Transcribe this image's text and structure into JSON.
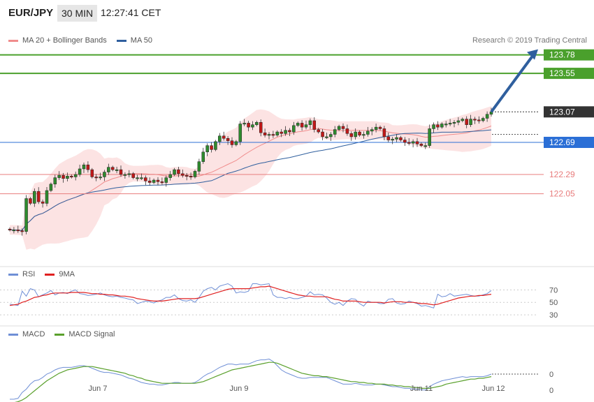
{
  "header": {
    "pair": "EUR/JPY",
    "timeframe": "30 MIN",
    "time": "12:27:41 CET"
  },
  "legend_main": [
    {
      "label": "MA 20 + Bollinger Bands",
      "color": "#f08c8c"
    },
    {
      "label": "MA 50",
      "color": "#2f5f9e"
    }
  ],
  "credit": "Research © 2019 Trading Central",
  "levels": [
    {
      "value": "123.78",
      "color": "#4aa02c",
      "kind": "resistance"
    },
    {
      "value": "123.55",
      "color": "#4aa02c",
      "kind": "resistance"
    },
    {
      "value": "123.07",
      "color": "#333333",
      "kind": "last"
    },
    {
      "value": "122.69",
      "color": "#2b6fd6",
      "kind": "pivot"
    },
    {
      "value": "122.29",
      "color": "#e87c7c",
      "kind": "support"
    },
    {
      "value": "122.05",
      "color": "#e87c7c",
      "kind": "support"
    }
  ],
  "legend_rsi": [
    {
      "label": "RSI",
      "color": "#6f8fd6"
    },
    {
      "label": "9MA",
      "color": "#e02020"
    }
  ],
  "rsi_ticks": [
    "70",
    "50",
    "30"
  ],
  "legend_macd": [
    {
      "label": "MACD",
      "color": "#6f8fd6"
    },
    {
      "label": "MACD Signal",
      "color": "#5aa02c"
    }
  ],
  "macd_ticks": [
    "0",
    "0"
  ],
  "x_labels": [
    "Jun 7",
    "Jun 9",
    "Jun 11",
    "Jun 12"
  ],
  "chart_data": [
    {
      "type": "candlestick",
      "title": "EUR/JPY",
      "yrange": [
        121.3,
        124.0
      ],
      "last_price": 123.07,
      "series": [
        {
          "name": "close",
          "values": [
            121.6,
            121.6,
            121.59,
            121.58,
            121.99,
            121.93,
            122.08,
            121.95,
            121.93,
            122.09,
            122.17,
            122.25,
            122.28,
            122.24,
            122.27,
            122.26,
            122.29,
            122.36,
            122.41,
            122.35,
            122.26,
            122.25,
            122.26,
            122.32,
            122.38,
            122.35,
            122.35,
            122.29,
            122.29,
            122.3,
            122.25,
            122.25,
            122.25,
            122.21,
            122.19,
            122.22,
            122.2,
            122.19,
            122.25,
            122.29,
            122.35,
            122.3,
            122.28,
            122.27,
            122.26,
            122.33,
            122.45,
            122.57,
            122.65,
            122.6,
            122.7,
            122.77,
            122.74,
            122.71,
            122.66,
            122.7,
            122.92,
            122.93,
            122.88,
            122.91,
            122.94,
            122.81,
            122.78,
            122.79,
            122.78,
            122.82,
            122.8,
            122.84,
            122.82,
            122.9,
            122.93,
            122.88,
            122.91,
            122.96,
            122.85,
            122.82,
            122.76,
            122.76,
            122.79,
            122.85,
            122.89,
            122.86,
            122.8,
            122.76,
            122.82,
            122.78,
            122.79,
            122.83,
            122.85,
            122.88,
            122.86,
            122.76,
            122.72,
            122.73,
            122.75,
            122.72,
            122.69,
            122.68,
            122.7,
            122.67,
            122.65,
            122.65,
            122.86,
            122.91,
            122.88,
            122.92,
            122.92,
            122.93,
            122.94,
            122.96,
            122.98,
            122.91,
            122.98,
            122.97,
            122.96,
            122.99,
            123.04,
            123.07
          ]
        }
      ],
      "overlays": [
        "MA 20",
        "Bollinger Bands",
        "MA 50"
      ]
    },
    {
      "type": "line",
      "title": "RSI",
      "series": [
        {
          "name": "RSI",
          "values": [
            47,
            46,
            45,
            68,
            60,
            72,
            70,
            59,
            62,
            65,
            69,
            62,
            65,
            66,
            64,
            68,
            70,
            64,
            63,
            61,
            62,
            63,
            65,
            62,
            60,
            59,
            60,
            58,
            57,
            55,
            54,
            48,
            50,
            52,
            51,
            49,
            52,
            54,
            58,
            58,
            62,
            56,
            53,
            52,
            54,
            50,
            58,
            68,
            72,
            74,
            70,
            76,
            78,
            80,
            76,
            65,
            67,
            66,
            68,
            80,
            80,
            78,
            79,
            80,
            62,
            58,
            58,
            56,
            58,
            56,
            56,
            58,
            60,
            67,
            62,
            63,
            62,
            57,
            50,
            47,
            50,
            45,
            52,
            56,
            55,
            48,
            44,
            52,
            50,
            50,
            48,
            48,
            55,
            56,
            49,
            47,
            48,
            52,
            50,
            48,
            44,
            45,
            43,
            41,
            63,
            59,
            60,
            64,
            60,
            61,
            62,
            63,
            61,
            60,
            60,
            62,
            64,
            69
          ]
        },
        {
          "name": "9MA",
          "values": [
            45,
            46,
            47,
            50,
            52,
            55,
            58,
            59,
            61,
            62,
            64,
            65,
            65,
            65,
            65,
            66,
            66,
            66,
            66,
            65,
            64,
            64,
            63,
            63,
            62,
            62,
            61,
            60,
            60,
            59,
            58,
            56,
            55,
            54,
            53,
            52,
            52,
            52,
            53,
            54,
            55,
            56,
            56,
            56,
            56,
            56,
            57,
            59,
            61,
            63,
            65,
            67,
            69,
            71,
            72,
            72,
            72,
            72,
            72,
            73,
            74,
            75,
            75,
            76,
            74,
            72,
            70,
            68,
            66,
            64,
            62,
            61,
            60,
            60,
            59,
            59,
            59,
            59,
            57,
            55,
            54,
            52,
            52,
            52,
            52,
            51,
            50,
            50,
            50,
            50,
            50,
            49,
            50,
            51,
            51,
            51,
            50,
            50,
            50,
            49,
            48,
            48,
            47,
            46,
            47,
            49,
            51,
            53,
            55,
            57,
            58,
            59,
            60,
            60,
            61,
            61,
            62,
            63
          ]
        }
      ],
      "ticks": [
        70,
        50,
        30
      ]
    },
    {
      "type": "line",
      "title": "MACD",
      "series": [
        {
          "name": "MACD",
          "values": [
            -0.3,
            -0.3,
            -0.29,
            -0.22,
            -0.18,
            -0.12,
            -0.08,
            -0.07,
            -0.04,
            0.0,
            0.02,
            0.05,
            0.07,
            0.08,
            0.08,
            0.08,
            0.09,
            0.1,
            0.1,
            0.09,
            0.07,
            0.05,
            0.03,
            0.02,
            0.02,
            0.01,
            0.0,
            -0.01,
            -0.03,
            -0.05,
            -0.06,
            -0.08,
            -0.1,
            -0.11,
            -0.12,
            -0.12,
            -0.13,
            -0.13,
            -0.12,
            -0.11,
            -0.1,
            -0.1,
            -0.11,
            -0.11,
            -0.11,
            -0.1,
            -0.07,
            -0.03,
            0.0,
            0.02,
            0.05,
            0.08,
            0.1,
            0.12,
            0.12,
            0.11,
            0.12,
            0.12,
            0.12,
            0.14,
            0.16,
            0.17,
            0.17,
            0.18,
            0.15,
            0.1,
            0.05,
            0.02,
            0.0,
            -0.02,
            -0.04,
            -0.05,
            -0.05,
            -0.04,
            -0.04,
            -0.04,
            -0.04,
            -0.04,
            -0.06,
            -0.08,
            -0.1,
            -0.12,
            -0.12,
            -0.12,
            -0.11,
            -0.12,
            -0.13,
            -0.13,
            -0.13,
            -0.12,
            -0.12,
            -0.13,
            -0.14,
            -0.15,
            -0.15,
            -0.16,
            -0.17,
            -0.17,
            -0.18,
            -0.18,
            -0.19,
            -0.19,
            -0.15,
            -0.12,
            -0.1,
            -0.08,
            -0.07,
            -0.06,
            -0.05,
            -0.04,
            -0.03,
            -0.04,
            -0.03,
            -0.03,
            -0.03,
            -0.03,
            -0.02,
            0.0
          ]
        },
        {
          "name": "MACD Signal",
          "values": [
            -0.34,
            -0.34,
            -0.33,
            -0.31,
            -0.28,
            -0.24,
            -0.2,
            -0.16,
            -0.12,
            -0.08,
            -0.05,
            -0.02,
            0.01,
            0.03,
            0.05,
            0.06,
            0.07,
            0.08,
            0.09,
            0.09,
            0.09,
            0.08,
            0.07,
            0.06,
            0.05,
            0.04,
            0.03,
            0.02,
            0.01,
            -0.01,
            -0.02,
            -0.04,
            -0.05,
            -0.07,
            -0.08,
            -0.09,
            -0.1,
            -0.11,
            -0.11,
            -0.11,
            -0.11,
            -0.11,
            -0.11,
            -0.11,
            -0.11,
            -0.11,
            -0.1,
            -0.09,
            -0.07,
            -0.05,
            -0.03,
            -0.01,
            0.01,
            0.03,
            0.05,
            0.06,
            0.07,
            0.08,
            0.09,
            0.1,
            0.11,
            0.12,
            0.13,
            0.14,
            0.14,
            0.13,
            0.11,
            0.09,
            0.07,
            0.05,
            0.03,
            0.01,
            0.0,
            -0.01,
            -0.02,
            -0.02,
            -0.03,
            -0.03,
            -0.04,
            -0.05,
            -0.06,
            -0.07,
            -0.08,
            -0.09,
            -0.09,
            -0.1,
            -0.1,
            -0.11,
            -0.11,
            -0.12,
            -0.12,
            -0.12,
            -0.13,
            -0.13,
            -0.14,
            -0.14,
            -0.15,
            -0.15,
            -0.16,
            -0.16,
            -0.17,
            -0.17,
            -0.17,
            -0.16,
            -0.15,
            -0.14,
            -0.12,
            -0.11,
            -0.1,
            -0.09,
            -0.08,
            -0.07,
            -0.06,
            -0.06,
            -0.05,
            -0.05,
            -0.04,
            -0.03
          ]
        }
      ]
    }
  ]
}
